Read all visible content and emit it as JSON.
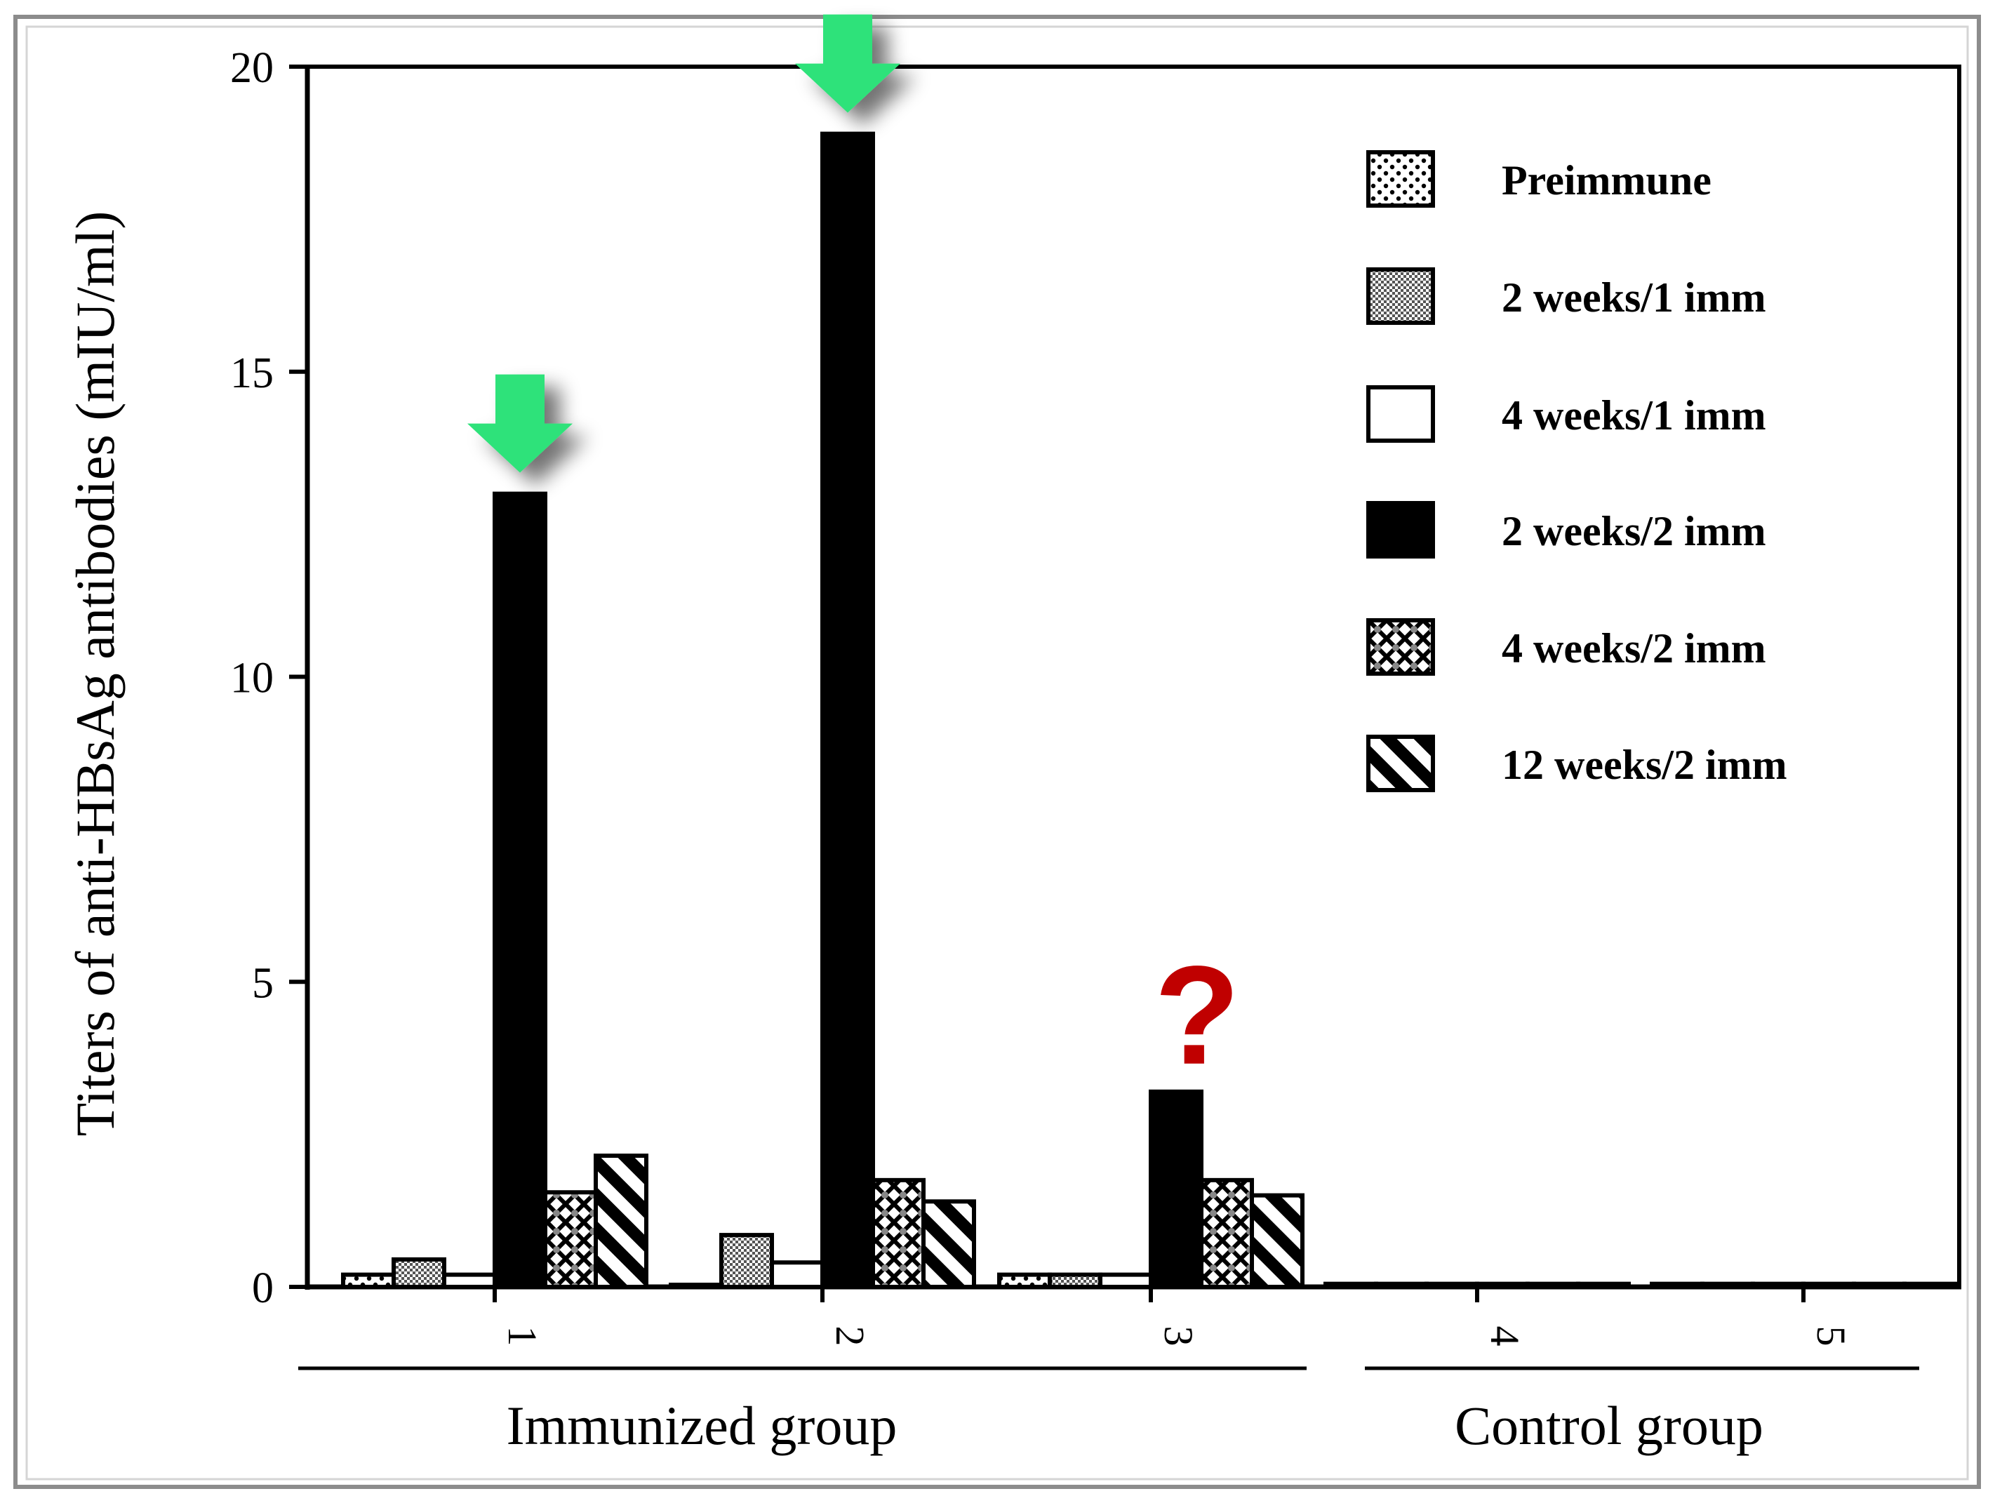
{
  "chart_data": {
    "type": "bar",
    "title": "",
    "xlabel": "",
    "ylabel": "Titers of anti-HBsAg antibodies (mIU/ml)",
    "ylim": [
      0,
      20
    ],
    "yticks": [
      0,
      5,
      10,
      15,
      20
    ],
    "categories": [
      "1",
      "2",
      "3",
      "4",
      "5"
    ],
    "groups": [
      {
        "label": "Immunized group",
        "categories": [
          "1",
          "2",
          "3"
        ]
      },
      {
        "label": "Control group",
        "categories": [
          "4",
          "5"
        ]
      }
    ],
    "series": [
      {
        "name": "Preimmune",
        "pattern": "dots",
        "values": [
          0.2,
          0.0,
          0.2,
          0.05,
          0.05
        ]
      },
      {
        "name": "2 weeks/1 imm",
        "pattern": "stipple",
        "values": [
          0.45,
          0.85,
          0.2,
          0.05,
          0.05
        ]
      },
      {
        "name": "4 weeks/1 imm",
        "pattern": "white",
        "values": [
          0.2,
          0.4,
          0.2,
          0.05,
          0.05
        ]
      },
      {
        "name": "2 weeks/2 imm",
        "pattern": "black",
        "values": [
          13.0,
          18.9,
          3.2,
          0.05,
          0.05
        ]
      },
      {
        "name": "4 weeks/2 imm",
        "pattern": "crosshatch",
        "values": [
          1.55,
          1.75,
          1.75,
          0.05,
          0.05
        ]
      },
      {
        "name": "12 weeks/2 imm",
        "pattern": "diagonal",
        "values": [
          2.15,
          1.4,
          1.5,
          0.05,
          0.05
        ]
      }
    ],
    "annotations": [
      {
        "type": "arrow",
        "color": "#2ee27a",
        "category": "1",
        "series": "2 weeks/2 imm"
      },
      {
        "type": "arrow",
        "color": "#2ee27a",
        "category": "2",
        "series": "2 weeks/2 imm"
      },
      {
        "type": "text",
        "text": "?",
        "color": "#c00000",
        "category": "3",
        "series": "2 weeks/2 imm"
      }
    ]
  }
}
